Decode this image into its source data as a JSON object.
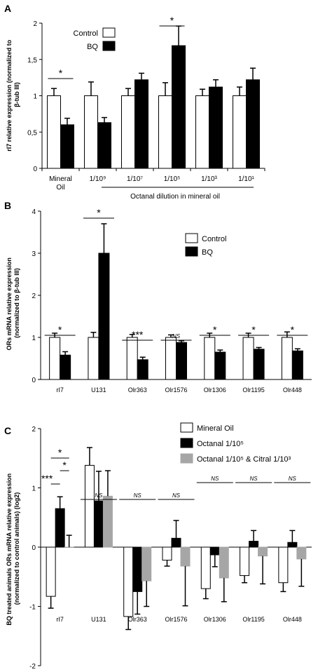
{
  "chart_data": [
    {
      "panel": "A",
      "type": "bar",
      "ylabel_lines": [
        "rI7 relative expression (normalized to",
        "β-tub III)"
      ],
      "ylim": [
        0,
        2
      ],
      "yticks": [
        "0",
        "0,5",
        "1",
        "1,5",
        "2"
      ],
      "categories": [
        "Mineral Oil",
        "1/10⁹",
        "1/10⁷",
        "1/10⁵",
        "1/10³",
        "1/10¹"
      ],
      "group_label": "Octanal dilution in mineral oil",
      "series": [
        {
          "name": "Control",
          "color": "#ffffff",
          "values": [
            1.0,
            1.0,
            1.0,
            1.0,
            1.0,
            1.0
          ],
          "errors": [
            0.1,
            0.19,
            0.1,
            0.18,
            0.09,
            0.12
          ]
        },
        {
          "name": "BQ",
          "color": "#000000",
          "values": [
            0.6,
            0.63,
            1.22,
            1.69,
            1.12,
            1.22
          ],
          "errors": [
            0.09,
            0.07,
            0.09,
            0.27,
            0.1,
            0.16
          ]
        }
      ],
      "significance": [
        {
          "label": "*",
          "category": 0
        },
        {
          "label": "*",
          "category": 3
        }
      ]
    },
    {
      "panel": "B",
      "type": "bar",
      "ylabel_lines": [
        "ORs mRNA relative expression",
        "(normalized to β-tub III)"
      ],
      "ylim": [
        0,
        4
      ],
      "yticks": [
        "0",
        "1",
        "2",
        "3",
        "4"
      ],
      "categories": [
        "rI7",
        "U131",
        "Olr363",
        "Olr1576",
        "Olr1306",
        "Olr1195",
        "Olr448"
      ],
      "series": [
        {
          "name": "Control",
          "color": "#ffffff",
          "values": [
            1.0,
            1.0,
            1.0,
            1.0,
            1.0,
            1.0,
            1.0
          ],
          "errors": [
            0.1,
            0.12,
            0.07,
            0.06,
            0.1,
            0.1,
            0.13
          ]
        },
        {
          "name": "BQ",
          "color": "#000000",
          "values": [
            0.58,
            3.0,
            0.47,
            0.88,
            0.65,
            0.72,
            0.68
          ],
          "errors": [
            0.08,
            0.7,
            0.06,
            0.04,
            0.05,
            0.04,
            0.05
          ]
        }
      ],
      "significance": [
        {
          "label": "*",
          "category": 0
        },
        {
          "label": "*",
          "category": 1
        },
        {
          "label": "***",
          "category": 2
        },
        {
          "label": "NS",
          "category": 3
        },
        {
          "label": "*",
          "category": 4
        },
        {
          "label": "*",
          "category": 5
        },
        {
          "label": "*",
          "category": 6
        }
      ]
    },
    {
      "panel": "C",
      "type": "bar",
      "ylabel_lines": [
        "BQ treated animals ORs mRNA relative expression",
        "(normalized to control animals) (log2)"
      ],
      "ylim": [
        -2,
        2
      ],
      "yticks": [
        "-2",
        "-1",
        "0",
        "1",
        "2"
      ],
      "categories": [
        "rI7",
        "U131",
        "Olr363",
        "Olr1576",
        "Olr1306",
        "Olr1195",
        "Olr448"
      ],
      "series": [
        {
          "name": "Mineral Oil",
          "color": "#ffffff",
          "values": [
            -0.83,
            1.38,
            -1.17,
            -0.22,
            -0.7,
            -0.48,
            -0.6
          ],
          "errors": [
            0.2,
            0.3,
            0.22,
            0.1,
            0.17,
            0.12,
            0.15
          ]
        },
        {
          "name": "Octanal 1/10⁵",
          "color": "#000000",
          "values": [
            0.65,
            0.78,
            -0.75,
            0.15,
            -0.13,
            0.1,
            0.08
          ],
          "errors": [
            0.2,
            0.5,
            0.38,
            0.3,
            0.2,
            0.18,
            0.2
          ]
        },
        {
          "name": "Octanal 1/10⁵ & Citral 1/10³",
          "color": "#a6a6a6",
          "values": [
            0.0,
            0.86,
            -0.57,
            -0.32,
            -0.52,
            -0.15,
            -0.2
          ],
          "errors": [
            0.2,
            0.43,
            0.43,
            0.67,
            0.4,
            0.47,
            0.46
          ]
        }
      ],
      "significance": [
        {
          "label": "*"
        },
        {
          "label": "*"
        },
        {
          "label": "***"
        },
        {
          "label": "NS",
          "category": 1
        },
        {
          "label": "NS",
          "category": 2
        },
        {
          "label": "NS",
          "category": 3
        },
        {
          "label": "NS",
          "category": 4
        },
        {
          "label": "NS",
          "category": 5
        },
        {
          "label": "NS",
          "category": 6
        }
      ]
    }
  ]
}
